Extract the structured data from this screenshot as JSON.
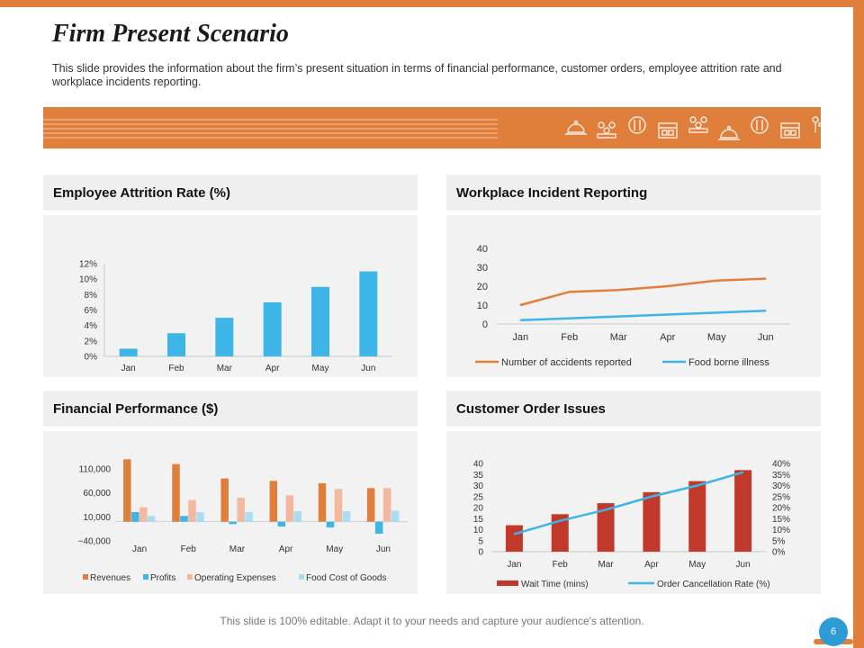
{
  "title": "Firm Present Scenario",
  "subtitle": "This slide provides the information about the firm’s present situation in terms of financial performance, customer orders, employee attrition rate and workplace incidents reporting.",
  "footer": "This slide is 100% editable. Adapt it to your needs and capture your audience's attention.",
  "page_number": "6",
  "banner_icons": [
    "service-bell-icon",
    "team-icon",
    "fork-knife-icon",
    "store-icon",
    "team-icon",
    "service-bell-icon",
    "fork-knife-icon",
    "store-icon",
    "dining-icon"
  ],
  "colors": {
    "accent": "#E07F3C",
    "blue": "#3DB5E6",
    "red": "#C0392B",
    "revenues": "#E07F3C",
    "profits": "#3DB5E6",
    "opex": "#F2B8A0",
    "food": "#A8DDF2"
  },
  "panels": {
    "attrition": {
      "title": "Employee Attrition Rate (%)"
    },
    "incident": {
      "title": "Workplace Incident Reporting"
    },
    "financial": {
      "title": "Financial Performance ($)"
    },
    "orders": {
      "title": "Customer Order Issues"
    }
  },
  "chart_data": [
    {
      "id": "attrition",
      "type": "bar",
      "title": "Employee Attrition Rate (%)",
      "categories": [
        "Jan",
        "Feb",
        "Mar",
        "Apr",
        "May",
        "Jun"
      ],
      "values": [
        1,
        3,
        5,
        7,
        9,
        11
      ],
      "ylim": [
        0,
        12
      ],
      "yticks": [
        0,
        2,
        4,
        6,
        8,
        10,
        12
      ],
      "ytick_labels": [
        "0%",
        "2%",
        "4%",
        "6%",
        "8%",
        "10%",
        "12%"
      ]
    },
    {
      "id": "incident",
      "type": "line",
      "title": "Workplace Incident Reporting",
      "categories": [
        "Jan",
        "Feb",
        "Mar",
        "Apr",
        "May",
        "Jun"
      ],
      "series": [
        {
          "name": "Number of accidents reported",
          "values": [
            10,
            17,
            18,
            20,
            23,
            24
          ]
        },
        {
          "name": "Food borne illness",
          "values": [
            2,
            3,
            4,
            5,
            6,
            7
          ]
        }
      ],
      "ylim": [
        0,
        40
      ],
      "yticks": [
        0,
        10,
        20,
        30,
        40
      ],
      "ytick_labels": [
        "0",
        "10",
        "20",
        "30",
        "40"
      ],
      "legend": "bottom"
    },
    {
      "id": "financial",
      "type": "bar",
      "title": "Financial Performance ($)",
      "categories": [
        "Jan",
        "Feb",
        "Mar",
        "Apr",
        "May",
        "Jun"
      ],
      "series": [
        {
          "name": "Revenues",
          "values": [
            130000,
            120000,
            90000,
            85000,
            80000,
            70000
          ]
        },
        {
          "name": "Profits",
          "values": [
            20000,
            12000,
            -5000,
            -10000,
            -12000,
            -25000
          ]
        },
        {
          "name": "Operating Expenses",
          "values": [
            30000,
            45000,
            50000,
            55000,
            68000,
            70000
          ]
        },
        {
          "name": "Food Cost of Goods",
          "values": [
            12000,
            20000,
            20000,
            22000,
            22000,
            23000
          ]
        }
      ],
      "ylim": [
        -40000,
        110000
      ],
      "yticks": [
        -40000,
        10000,
        60000,
        110000
      ],
      "ytick_labels": [
        "−40,000",
        "10,000",
        "60,000",
        "110,000"
      ],
      "legend": "bottom"
    },
    {
      "id": "orders",
      "type": "bar",
      "title": "Customer Order Issues",
      "categories": [
        "Jan",
        "Feb",
        "Mar",
        "Apr",
        "May",
        "Jun"
      ],
      "series": [
        {
          "name": "Wait Time (mins)",
          "type": "bar",
          "axis": "left",
          "values": [
            12,
            17,
            22,
            27,
            32,
            37
          ]
        },
        {
          "name": "Order Cancellation Rate (%)",
          "type": "line",
          "axis": "right",
          "values": [
            8,
            14,
            19,
            25,
            30,
            36
          ]
        }
      ],
      "ylim": [
        0,
        40
      ],
      "yticks": [
        0,
        5,
        10,
        15,
        20,
        25,
        30,
        35,
        40
      ],
      "ytick_labels": [
        "0",
        "5",
        "10",
        "15",
        "20",
        "25",
        "30",
        "35",
        "40"
      ],
      "y2lim": [
        0,
        40
      ],
      "y2ticks": [
        0,
        5,
        10,
        15,
        20,
        25,
        30,
        35,
        40
      ],
      "y2tick_labels": [
        "0%",
        "5%",
        "10%",
        "15%",
        "20%",
        "25%",
        "30%",
        "35%",
        "40%"
      ],
      "legend": "bottom"
    }
  ]
}
